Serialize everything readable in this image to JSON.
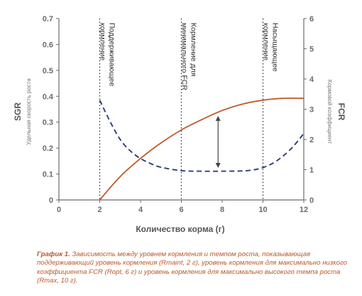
{
  "chart_data": {
    "type": "line",
    "x_axis": {
      "label": "Количество корма (г)",
      "min": 0,
      "max": 12,
      "ticks": [
        0,
        2,
        4,
        6,
        8,
        10,
        12
      ]
    },
    "y_left": {
      "label": "SGR",
      "sublabel": "Удельная скорость роста",
      "min": 0,
      "max": 0.7,
      "ticks": [
        0,
        0.1,
        0.2,
        0.3,
        0.4,
        0.5,
        0.6,
        0.7
      ]
    },
    "y_right": {
      "label": "FCR",
      "sublabel": "Кормовой коэффициент",
      "min": 0,
      "max": 6,
      "ticks": [
        0,
        1,
        2,
        3,
        4,
        5,
        6
      ]
    },
    "series": [
      {
        "axis": "left",
        "style": "solid",
        "color": "#c0592b",
        "x": [
          2,
          3,
          4,
          5,
          6,
          7,
          8,
          9,
          10,
          11,
          12
        ],
        "y": [
          0,
          0.09,
          0.16,
          0.22,
          0.27,
          0.31,
          0.345,
          0.37,
          0.385,
          0.392,
          0.392
        ]
      },
      {
        "axis": "right",
        "style": "dashed",
        "color": "#2b3f7a",
        "x": [
          2,
          2.5,
          3,
          3.5,
          4,
          4.5,
          5,
          6,
          7,
          8,
          9,
          9.5,
          10,
          10.5,
          11,
          11.5,
          12
        ],
        "y": [
          3.3,
          2.6,
          2.0,
          1.62,
          1.37,
          1.2,
          1.08,
          0.97,
          0.95,
          0.95,
          0.96,
          0.99,
          1.07,
          1.22,
          1.46,
          1.78,
          2.2
        ]
      }
    ],
    "vlines": [
      {
        "x": 2,
        "label": [
          "Поддерживающее",
          "кормление"
        ]
      },
      {
        "x": 6,
        "label": [
          "Кормление для",
          "минимального FCR"
        ]
      },
      {
        "x": 10,
        "label": [
          "Насыщающее",
          "кормление"
        ]
      }
    ],
    "double_arrow": {
      "x": 7.8,
      "y_from": 1.06,
      "y_to": 2.78,
      "axis": "right"
    },
    "grid": false
  },
  "caption": {
    "prefix": "График 1.",
    "text": " Зависимость между уровнем кормления и темпом роста, показывающая поддерживающий уровень кормления (Rmaint, 2 г), уровень кормления для максимально низкого коэффициента FCR (Ropt, 6 г) и уровень кормления для максимально высокого темпа роста (Rmax, 10 г)."
  },
  "colors": {
    "growth": "#c0592b",
    "fcr": "#2b3f7a",
    "axis": "#6b6b6b",
    "caption": "#b9582c"
  }
}
